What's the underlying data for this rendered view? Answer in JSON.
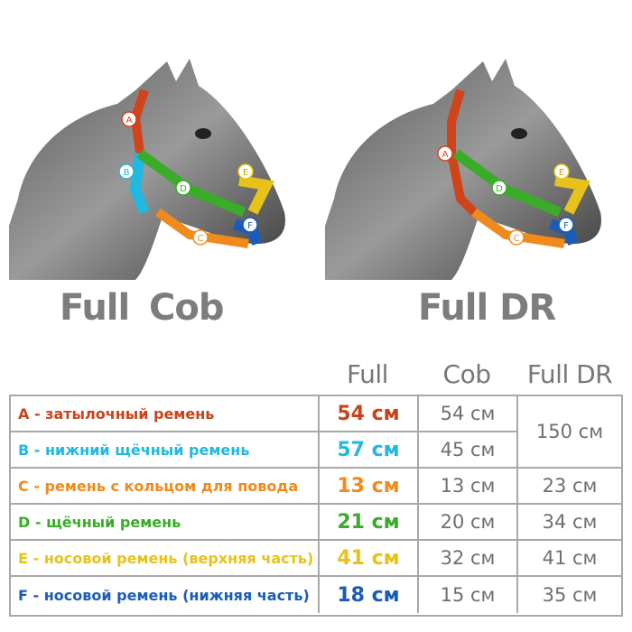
{
  "captions": {
    "full": "Full",
    "cob": "Cob",
    "full_dr": "Full DR"
  },
  "columns": {
    "full": "Full",
    "cob": "Cob",
    "full_dr": "Full DR"
  },
  "rows": [
    {
      "label": "A - затылочный ремень",
      "color": "#c8441c",
      "full": "54 см",
      "cob": "54 см",
      "full_dr": "150 см"
    },
    {
      "label": "B - нижний щёчный ремень",
      "color": "#22b8e0",
      "full": "57 см",
      "cob": "45 см",
      "full_dr": ""
    },
    {
      "label": "C - ремень с кольцом для повода",
      "color": "#f08a1c",
      "full": "13 см",
      "cob": "13 см",
      "full_dr": "23 см"
    },
    {
      "label": "D - щёчный ремень",
      "color": "#3aac2a",
      "full": "21 см",
      "cob": "20 см",
      "full_dr": "34 см"
    },
    {
      "label": "E - носовой ремень (верхняя часть)",
      "color": "#e6c21a",
      "full": "41 см",
      "cob": "32 см",
      "full_dr": "41 см"
    },
    {
      "label": "F - носовой ремень (нижняя часть)",
      "color": "#1a5cb8",
      "full": "18 см",
      "cob": "15 см",
      "full_dr": "35 см"
    }
  ],
  "markers": [
    "A",
    "B",
    "C",
    "D",
    "E",
    "F"
  ]
}
